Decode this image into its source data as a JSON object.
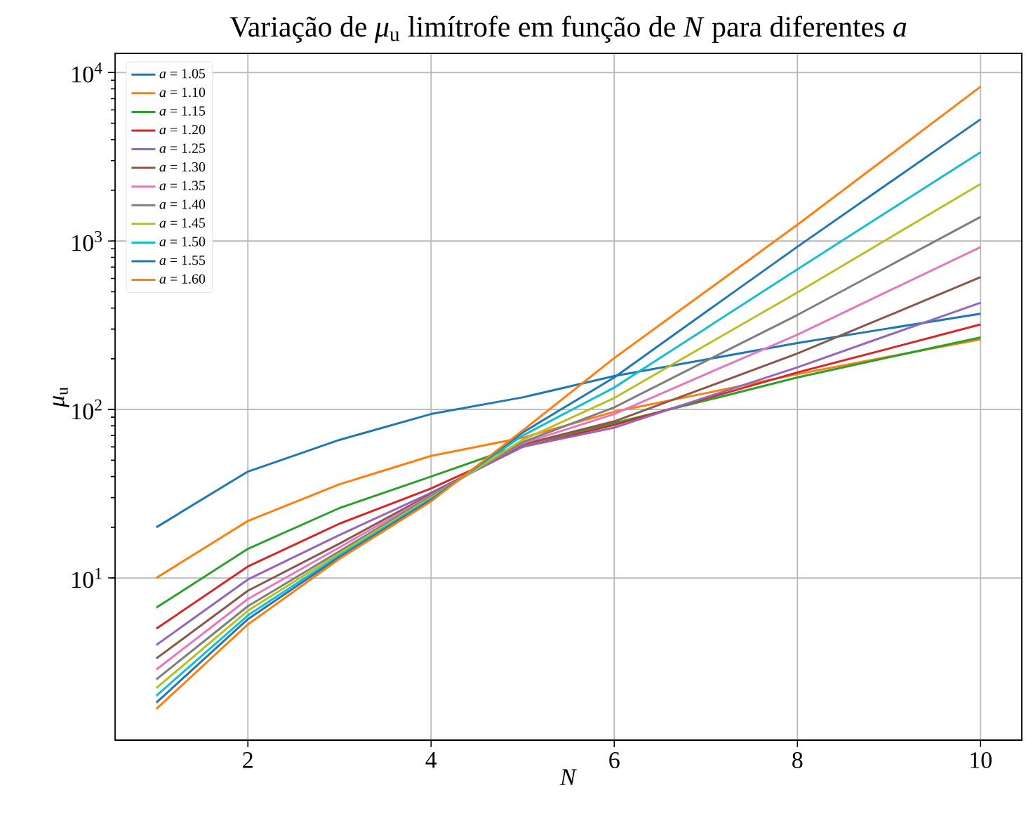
{
  "chart_data": {
    "type": "line",
    "title": "Variação de *μ*$_{u}$ limítrofe em função de *N* para diferentes *a*",
    "xlabel": "*N*",
    "ylabel": "*μ*$_{u}$",
    "x": [
      1,
      2,
      3,
      4,
      5,
      6,
      7,
      8,
      9,
      10
    ],
    "series": [
      {
        "name": "*a* = 1.05",
        "color": "#1f77b4",
        "values": [
          20,
          42.8,
          66,
          94,
          118,
          158,
          198,
          248,
          303,
          370
        ]
      },
      {
        "name": "*a* = 1.10",
        "color": "#ff7f0e",
        "values": [
          10,
          21.8,
          36,
          53,
          68,
          97,
          125,
          162,
          206,
          261
        ]
      },
      {
        "name": "*a* = 1.15",
        "color": "#2ca02c",
        "values": [
          6.67,
          14.9,
          26,
          40,
          62,
          83,
          113,
          155,
          204,
          268
        ]
      },
      {
        "name": "*a* = 1.20",
        "color": "#d62728",
        "values": [
          5,
          11.7,
          21,
          34,
          60,
          81,
          116,
          166,
          230,
          320
        ]
      },
      {
        "name": "*a* = 1.25",
        "color": "#9467bd",
        "values": [
          4,
          9.8,
          18,
          32,
          60,
          78,
          118,
          178,
          277,
          430
        ]
      },
      {
        "name": "*a* = 1.30",
        "color": "#8c564b",
        "values": [
          3.33,
          8.4,
          16,
          31.5,
          62,
          85,
          135,
          215,
          362,
          610
        ]
      },
      {
        "name": "*a* = 1.35",
        "color": "#e377c2",
        "values": [
          2.86,
          7.5,
          15.2,
          31,
          63,
          94,
          162,
          278,
          506,
          920
        ]
      },
      {
        "name": "*a* = 1.40",
        "color": "#7f7f7f",
        "values": [
          2.5,
          6.8,
          14.4,
          30.5,
          64,
          103,
          194,
          364,
          711,
          1390
        ]
      },
      {
        "name": "*a* = 1.45",
        "color": "#bcbd22",
        "values": [
          2.22,
          6.4,
          14,
          30,
          66,
          117,
          241,
          495,
          1039,
          2180
        ]
      },
      {
        "name": "*a* = 1.50",
        "color": "#17becf",
        "values": [
          2,
          6,
          13.6,
          29.5,
          70,
          135,
          303,
          680,
          1514,
          3370
        ]
      },
      {
        "name": "*a* = 1.55",
        "color": "#1f77b4",
        "values": [
          1.82,
          5.7,
          13.3,
          29,
          73,
          155,
          379,
          925,
          2210,
          5280
        ]
      },
      {
        "name": "*a* = 1.60",
        "color": "#ff7f0e",
        "values": [
          1.67,
          5.3,
          13,
          28.5,
          75,
          202,
          502,
          1250,
          3210,
          8250
        ]
      }
    ],
    "xlim": [
      0.55,
      10.45
    ],
    "xticks": [
      2,
      4,
      6,
      8,
      10
    ],
    "ylim": [
      1.09,
      13000
    ],
    "yticks": [
      {
        "value": 10,
        "label": "10$^{1}$"
      },
      {
        "value": 100,
        "label": "10$^{2}$"
      },
      {
        "value": 1000,
        "label": "10$^{3}$"
      },
      {
        "value": 10000,
        "label": "10$^{4}$"
      }
    ],
    "log": "y",
    "grid": true,
    "legend": "top left"
  }
}
